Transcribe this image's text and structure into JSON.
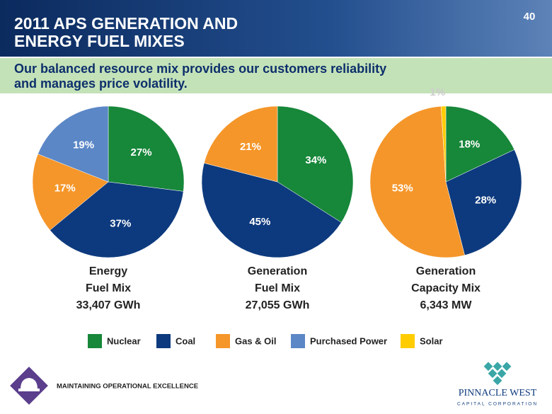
{
  "header": {
    "title": [
      "2011 APS GENERATION AND",
      "ENERGY FUEL MIXES"
    ],
    "page_number": "40",
    "subtitle": [
      "Our balanced resource mix provides our customers reliability",
      "and manages price volatility."
    ]
  },
  "chart_data": [
    {
      "type": "pie",
      "title": [
        "Energy",
        "Fuel Mix"
      ],
      "subtitle": "33,407 GWh",
      "values": [
        27,
        37,
        17,
        19
      ],
      "value_labels": [
        "27%",
        "37%",
        "17%",
        "19%"
      ],
      "colors": [
        "#17873a",
        "#0d3a7e",
        "#f5962a",
        "#5b87c6"
      ]
    },
    {
      "type": "pie",
      "title": [
        "Generation",
        "Fuel Mix"
      ],
      "subtitle": "27,055 GWh",
      "values": [
        34,
        45,
        21
      ],
      "value_labels": [
        "34%",
        "45%",
        "21%"
      ],
      "colors": [
        "#17873a",
        "#0d3a7e",
        "#f5962a"
      ]
    },
    {
      "type": "pie",
      "title": [
        "Generation",
        "Capacity Mix"
      ],
      "subtitle": "6,343 MW",
      "values": [
        18,
        28,
        53,
        1
      ],
      "value_labels": [
        "18%",
        "28%",
        "53%",
        "1%"
      ],
      "colors": [
        "#17873a",
        "#0d3a7e",
        "#f5962a",
        "#ffcc00"
      ]
    }
  ],
  "legend": [
    {
      "name": "Nuclear",
      "color": "#17873a"
    },
    {
      "name": "Coal",
      "color": "#0d3a7e"
    },
    {
      "name": "Gas & Oil",
      "color": "#f5962a"
    },
    {
      "name": "Purchased Power",
      "color": "#5b87c6"
    },
    {
      "name": "Solar",
      "color": "#ffcc00"
    }
  ],
  "footer": {
    "tagline": "MAINTAINING OPERATIONAL EXCELLENCE",
    "logo_name": "PINNACLE WEST",
    "logo_sub": "CAPITAL CORPORATION"
  }
}
